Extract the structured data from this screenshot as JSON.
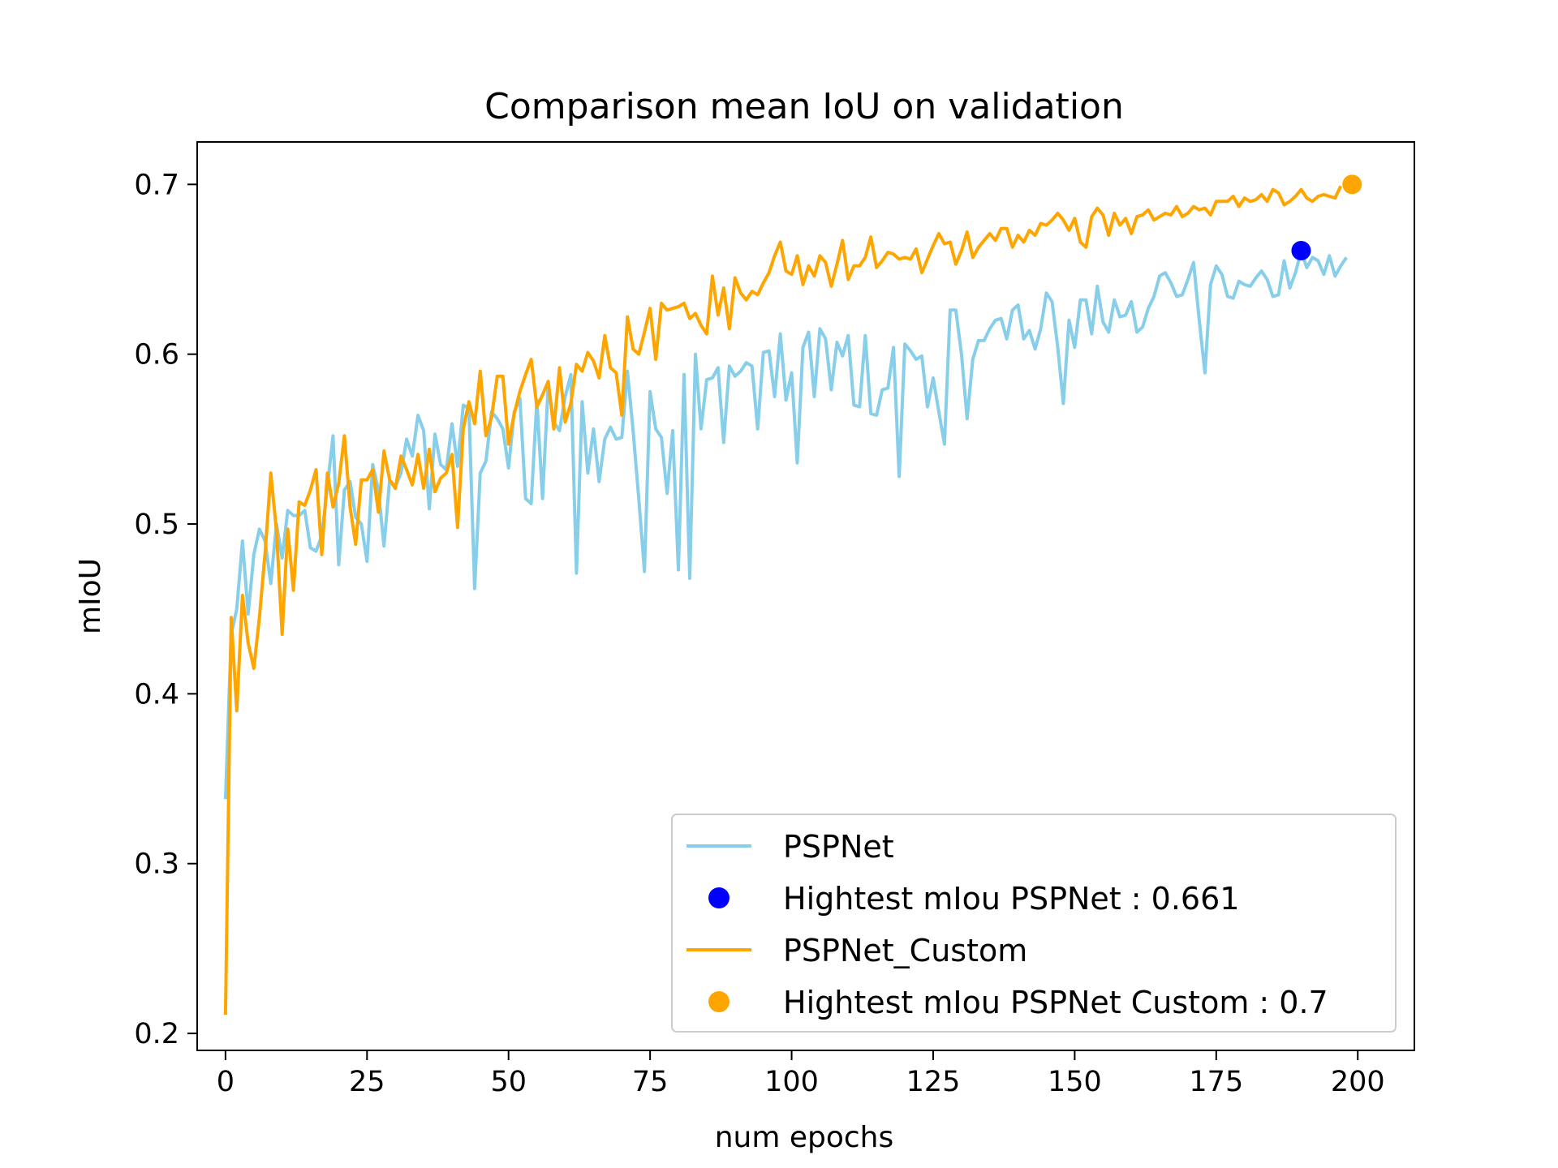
{
  "chart_data": {
    "type": "line",
    "title": "Comparison mean IoU on validation",
    "xlabel": "num epochs",
    "ylabel": "mIoU",
    "xlim": [
      -5,
      210
    ],
    "ylim": [
      0.19,
      0.725
    ],
    "xticks": [
      0,
      25,
      50,
      75,
      100,
      125,
      150,
      175,
      200
    ],
    "yticks": [
      0.2,
      0.3,
      0.4,
      0.5,
      0.6,
      0.7
    ],
    "grid": false,
    "legend_position": "lower-right",
    "series": [
      {
        "name": "PSPNet",
        "kind": "line",
        "color": "#87ceeb",
        "x_start": 0,
        "values": [
          0.338,
          0.435,
          0.45,
          0.49,
          0.447,
          0.482,
          0.497,
          0.49,
          0.465,
          0.5,
          0.48,
          0.508,
          0.505,
          0.505,
          0.508,
          0.486,
          0.484,
          0.493,
          0.522,
          0.552,
          0.476,
          0.52,
          0.525,
          0.504,
          0.5,
          0.478,
          0.535,
          0.52,
          0.487,
          0.526,
          0.522,
          0.53,
          0.55,
          0.54,
          0.564,
          0.555,
          0.509,
          0.553,
          0.535,
          0.532,
          0.559,
          0.534,
          0.57,
          0.568,
          0.462,
          0.53,
          0.537,
          0.566,
          0.562,
          0.556,
          0.533,
          0.566,
          0.574,
          0.515,
          0.512,
          0.573,
          0.515,
          0.582,
          0.56,
          0.555,
          0.575,
          0.588,
          0.471,
          0.572,
          0.53,
          0.556,
          0.525,
          0.55,
          0.557,
          0.55,
          0.551,
          0.59,
          0.555,
          0.515,
          0.472,
          0.578,
          0.556,
          0.551,
          0.518,
          0.555,
          0.473,
          0.588,
          0.468,
          0.6,
          0.556,
          0.585,
          0.586,
          0.592,
          0.548,
          0.593,
          0.587,
          0.59,
          0.595,
          0.593,
          0.556,
          0.601,
          0.602,
          0.575,
          0.612,
          0.573,
          0.589,
          0.536,
          0.604,
          0.613,
          0.575,
          0.615,
          0.609,
          0.579,
          0.607,
          0.599,
          0.611,
          0.57,
          0.569,
          0.611,
          0.565,
          0.564,
          0.579,
          0.58,
          0.604,
          0.528,
          0.606,
          0.602,
          0.597,
          0.599,
          0.569,
          0.586,
          0.566,
          0.547,
          0.626,
          0.626,
          0.6,
          0.562,
          0.597,
          0.608,
          0.608,
          0.615,
          0.62,
          0.621,
          0.609,
          0.626,
          0.629,
          0.609,
          0.614,
          0.603,
          0.615,
          0.636,
          0.631,
          0.604,
          0.571,
          0.62,
          0.604,
          0.632,
          0.632,
          0.612,
          0.64,
          0.619,
          0.613,
          0.632,
          0.622,
          0.623,
          0.631,
          0.613,
          0.616,
          0.627,
          0.634,
          0.646,
          0.648,
          0.642,
          0.634,
          0.635,
          0.644,
          0.654,
          0.62,
          0.589,
          0.641,
          0.652,
          0.647,
          0.634,
          0.633,
          0.643,
          0.641,
          0.64,
          0.645,
          0.649,
          0.644,
          0.634,
          0.635,
          0.655,
          0.639,
          0.648,
          0.661,
          0.651,
          0.657,
          0.655,
          0.647,
          0.658,
          0.646,
          0.652,
          0.657
        ]
      },
      {
        "name": "Hightest mIou PSPNet : 0.661",
        "kind": "marker",
        "color": "#0000ff",
        "x": 190,
        "y": 0.661
      },
      {
        "name": "PSPNet_Custom",
        "kind": "line",
        "color": "#ffa500",
        "x_start": 0,
        "values": [
          0.211,
          0.445,
          0.39,
          0.458,
          0.43,
          0.415,
          0.445,
          0.483,
          0.53,
          0.496,
          0.435,
          0.497,
          0.461,
          0.513,
          0.511,
          0.52,
          0.532,
          0.482,
          0.53,
          0.51,
          0.524,
          0.552,
          0.51,
          0.488,
          0.526,
          0.526,
          0.532,
          0.507,
          0.543,
          0.526,
          0.521,
          0.54,
          0.532,
          0.523,
          0.541,
          0.521,
          0.544,
          0.519,
          0.527,
          0.53,
          0.541,
          0.498,
          0.556,
          0.572,
          0.559,
          0.59,
          0.552,
          0.563,
          0.587,
          0.587,
          0.547,
          0.565,
          0.578,
          0.588,
          0.597,
          0.569,
          0.576,
          0.584,
          0.556,
          0.592,
          0.56,
          0.571,
          0.594,
          0.59,
          0.601,
          0.596,
          0.586,
          0.611,
          0.592,
          0.589,
          0.564,
          0.622,
          0.603,
          0.6,
          0.613,
          0.627,
          0.597,
          0.63,
          0.626,
          0.627,
          0.628,
          0.63,
          0.621,
          0.624,
          0.617,
          0.612,
          0.646,
          0.623,
          0.639,
          0.615,
          0.645,
          0.636,
          0.632,
          0.637,
          0.635,
          0.642,
          0.648,
          0.658,
          0.666,
          0.649,
          0.647,
          0.658,
          0.641,
          0.652,
          0.646,
          0.658,
          0.654,
          0.64,
          0.653,
          0.667,
          0.644,
          0.652,
          0.652,
          0.657,
          0.669,
          0.651,
          0.655,
          0.66,
          0.659,
          0.656,
          0.657,
          0.656,
          0.662,
          0.648,
          0.656,
          0.664,
          0.671,
          0.665,
          0.666,
          0.653,
          0.661,
          0.672,
          0.657,
          0.663,
          0.667,
          0.671,
          0.667,
          0.674,
          0.674,
          0.663,
          0.67,
          0.666,
          0.673,
          0.67,
          0.677,
          0.676,
          0.679,
          0.683,
          0.679,
          0.673,
          0.68,
          0.666,
          0.663,
          0.681,
          0.686,
          0.682,
          0.67,
          0.683,
          0.676,
          0.68,
          0.671,
          0.681,
          0.682,
          0.685,
          0.679,
          0.681,
          0.683,
          0.682,
          0.687,
          0.681,
          0.683,
          0.687,
          0.685,
          0.686,
          0.682,
          0.69,
          0.69,
          0.69,
          0.693,
          0.687,
          0.692,
          0.69,
          0.691,
          0.694,
          0.69,
          0.697,
          0.695,
          0.688,
          0.69,
          0.693,
          0.697,
          0.692,
          0.69,
          0.693,
          0.694,
          0.693,
          0.692,
          0.699
        ]
      },
      {
        "name": "Hightest mIou PSPNet Custom : 0.7",
        "kind": "marker",
        "color": "#ffa500",
        "x": 199,
        "y": 0.7
      }
    ]
  }
}
